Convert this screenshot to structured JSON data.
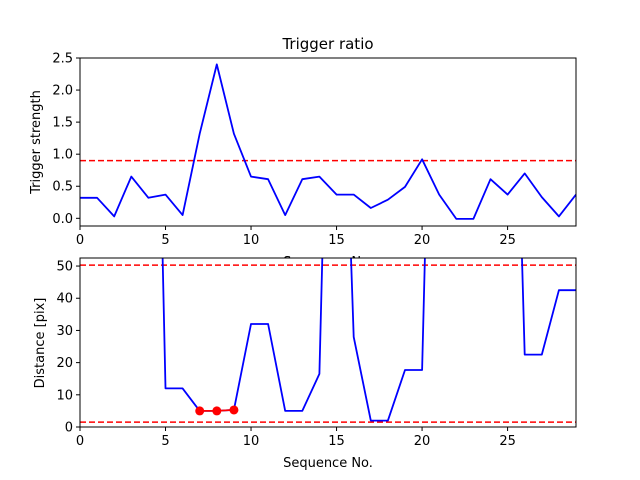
{
  "chart_data": [
    {
      "type": "line",
      "title": "Trigger ratio",
      "xlabel": "Sequence No.",
      "ylabel": "Trigger strength",
      "xlim": [
        0,
        29
      ],
      "ylim": [
        -0.12,
        2.5
      ],
      "xticks": [
        "0",
        "5",
        "10",
        "15",
        "20",
        "25"
      ],
      "yticks": [
        "0.0",
        "0.5",
        "1.0",
        "1.5",
        "2.0",
        "2.5"
      ],
      "grid": false,
      "series": [
        {
          "color": "#0000ff",
          "x": [
            0,
            1,
            2,
            3,
            4,
            5,
            6,
            7,
            8,
            9,
            10,
            11,
            12,
            13,
            14,
            15,
            16,
            17,
            18,
            19,
            20,
            21,
            22,
            23,
            24,
            25,
            26,
            27,
            28,
            29
          ],
          "values": [
            0.32,
            0.32,
            0.03,
            0.65,
            0.32,
            0.37,
            0.05,
            1.32,
            2.4,
            1.32,
            0.65,
            0.61,
            0.05,
            0.61,
            0.65,
            0.37,
            0.37,
            0.16,
            0.29,
            0.49,
            0.92,
            0.37,
            -0.01,
            -0.01,
            0.61,
            0.37,
            0.7,
            0.33,
            0.03,
            0.37
          ]
        }
      ],
      "hlines": [
        {
          "y": 0.9,
          "color": "#ff0000",
          "style": "dashed"
        }
      ]
    },
    {
      "type": "line",
      "title": "",
      "xlabel": "Sequence No.",
      "ylabel": "Distance [pix]",
      "xlim": [
        0,
        29
      ],
      "ylim": [
        0,
        52.5
      ],
      "xticks": [
        "0",
        "5",
        "10",
        "15",
        "20",
        "25"
      ],
      "yticks": [
        "0",
        "10",
        "20",
        "30",
        "40",
        "50"
      ],
      "grid": false,
      "series": [
        {
          "color": "#0000ff",
          "x": [
            4.8,
            5,
            6,
            7,
            8,
            9,
            10,
            11,
            12,
            13,
            14,
            14.2,
            15.8,
            16,
            17,
            18,
            19,
            20,
            20.2,
            25.8,
            26,
            27,
            28,
            29
          ],
          "values": [
            60,
            12,
            12,
            5,
            5,
            5.3,
            32,
            32,
            5,
            5,
            16.5,
            60,
            60,
            28,
            2,
            2,
            17.7,
            17.7,
            60,
            60,
            22.5,
            22.5,
            42.5,
            42.5
          ]
        }
      ],
      "markers": {
        "color": "#ff0000",
        "x": [
          7,
          8,
          9
        ],
        "values": [
          5,
          5,
          5.3
        ]
      },
      "hlines": [
        {
          "y": 50.3,
          "color": "#ff0000",
          "style": "dashed"
        },
        {
          "y": 1.5,
          "color": "#ff0000",
          "style": "dashed"
        }
      ]
    }
  ]
}
